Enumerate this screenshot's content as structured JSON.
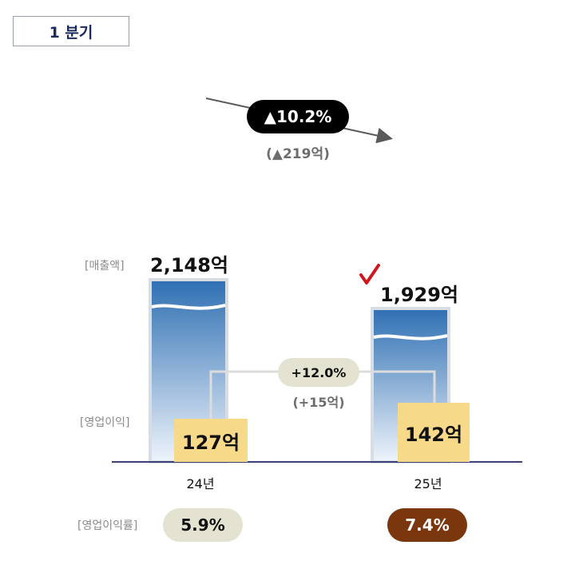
{
  "header": {
    "period_label": "1 분기"
  },
  "revenue_change": {
    "percent": "▲10.2%",
    "amount": "(▲219억)"
  },
  "labels": {
    "revenue": "[매출액]",
    "operating_profit": "[영업이익]",
    "operating_margin": "[영업이익률]"
  },
  "operating_profit_change": {
    "percent": "+12.0%",
    "amount": "(+15억)"
  },
  "colors": {
    "bar_top": "#2e6fb3",
    "bar_bottom": "#e8f1fa",
    "bar_border": "#d8dde4",
    "op_box": "#f7d98a",
    "margin_highlight": "#7a360c",
    "check_mark": "#d0161d"
  },
  "chart_data": {
    "type": "bar",
    "categories": [
      "24년",
      "25년"
    ],
    "series": [
      {
        "name": "매출액",
        "values": [
          2148,
          1929
        ],
        "labels": [
          "2,148억",
          "1,929억"
        ]
      },
      {
        "name": "영업이익",
        "values": [
          127,
          142
        ],
        "labels": [
          "127억",
          "142억"
        ]
      },
      {
        "name": "영업이익률",
        "values": [
          5.9,
          7.4
        ],
        "labels": [
          "5.9%",
          "7.4%"
        ]
      }
    ],
    "title": "",
    "xlabel": "",
    "ylabel": ""
  }
}
